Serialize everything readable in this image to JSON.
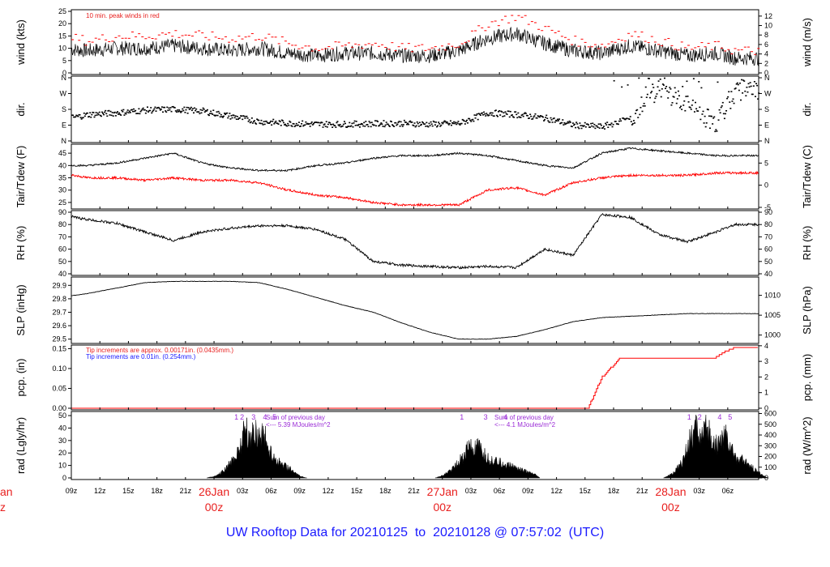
{
  "footer": {
    "prefix": "UW Rooftop Data for",
    "start": "20210125",
    "to": "to",
    "end": "20210128",
    "at": "@",
    "time": "07:57:02",
    "tz": "(UTC)"
  },
  "time_axis": {
    "tick_labels": [
      "09z",
      "12z",
      "15z",
      "18z",
      "21z",
      "03z",
      "06z",
      "09z",
      "12z",
      "15z",
      "18z",
      "21z",
      "03z",
      "06z",
      "09z",
      "12z",
      "15z",
      "18z",
      "21z",
      "03z",
      "06z"
    ],
    "day_labels": [
      {
        "date": "26Jan",
        "hour": "00z"
      },
      {
        "date": "27Jan",
        "hour": "00z"
      },
      {
        "date": "28Jan",
        "hour": "00z"
      }
    ],
    "left_clip_labels": [
      "an",
      "z"
    ]
  },
  "colors": {
    "series": "#000000",
    "dewpoint": "#ff0000",
    "annotation_red": "#e8201f",
    "annotation_blue": "#1a1aff",
    "annotation_purple": "#9a2bd6",
    "day_label": "#e8201f",
    "footer": "#1a1aff"
  },
  "chart_data": [
    {
      "id": "wind",
      "type": "line",
      "ylabel": "wind (kts)",
      "ylabel_right": "wind (m/s)",
      "ylim": [
        0,
        25
      ],
      "yticks": [
        "0",
        "5",
        "10",
        "15",
        "20",
        "25"
      ],
      "ylim_right": [
        0,
        13
      ],
      "yticks_right": [
        "0",
        "2",
        "4",
        "6",
        "8",
        "10",
        "12"
      ],
      "annotation": "10 min. peak winds in red",
      "x_hours": [
        0,
        3,
        6,
        9,
        12,
        15,
        18,
        21,
        24,
        27,
        30,
        33,
        36,
        39,
        42,
        45,
        48,
        51,
        54,
        57,
        60,
        63,
        66,
        69,
        71
      ],
      "series": [
        {
          "values": [
            10,
            9,
            10,
            10,
            11,
            10,
            9,
            10,
            8,
            7,
            8,
            8,
            7,
            7,
            9,
            14,
            16,
            12,
            9,
            8,
            11,
            9,
            7,
            8,
            6
          ]
        },
        {
          "values": [
            15,
            13,
            15,
            15,
            16,
            15,
            14,
            15,
            12,
            10,
            11,
            12,
            10,
            10,
            12,
            20,
            23,
            18,
            13,
            11,
            16,
            13,
            10,
            11,
            9
          ]
        }
      ]
    },
    {
      "id": "dir",
      "type": "scatter",
      "ylabel": "dir.",
      "ylabel_right": "dir.",
      "yticks": [
        "N",
        "E",
        "S",
        "W",
        "N"
      ],
      "x_hours": [
        0,
        3,
        6,
        9,
        12,
        15,
        18,
        21,
        24,
        27,
        30,
        33,
        36,
        39,
        42,
        45,
        48,
        51,
        54,
        57,
        60,
        63,
        66,
        69,
        71
      ],
      "values": [
        120,
        150,
        160,
        175,
        180,
        170,
        140,
        110,
        100,
        95,
        95,
        98,
        100,
        95,
        100,
        160,
        150,
        130,
        90,
        80,
        130,
        300,
        200,
        100,
        290
      ]
    },
    {
      "id": "temp",
      "type": "line",
      "ylabel": "Tair/Tdew (F)",
      "ylabel_right": "Tair/Tdew (C)",
      "ylim": [
        23,
        48
      ],
      "yticks": [
        "25",
        "30",
        "35",
        "40",
        "45"
      ],
      "ylim_right": [
        -5,
        8.9
      ],
      "yticks_right": [
        "-5",
        "0",
        "5"
      ],
      "x_hours": [
        0,
        3,
        6,
        9,
        12,
        15,
        18,
        21,
        24,
        27,
        30,
        33,
        36,
        39,
        42,
        45,
        48,
        51,
        54,
        57,
        60,
        63,
        66,
        69,
        71
      ],
      "series": [
        {
          "values": [
            40,
            40,
            41,
            43,
            45,
            41,
            39,
            38,
            38,
            40,
            41,
            43,
            44,
            44,
            45,
            44,
            42,
            40,
            39,
            45,
            47,
            46,
            45,
            44,
            44
          ]
        },
        {
          "values": [
            37,
            35,
            35,
            34,
            35,
            34,
            34,
            33,
            30,
            28,
            27,
            25,
            24,
            24,
            24,
            30,
            31,
            28,
            33,
            35,
            36,
            36,
            36,
            37,
            37
          ]
        }
      ]
    },
    {
      "id": "rh",
      "type": "line",
      "ylabel": "RH (%)",
      "ylabel_right": "RH (%)",
      "ylim": [
        40,
        90
      ],
      "yticks": [
        "40",
        "50",
        "60",
        "70",
        "80",
        "90"
      ],
      "x_hours": [
        0,
        3,
        6,
        9,
        12,
        15,
        18,
        21,
        24,
        27,
        30,
        33,
        36,
        39,
        42,
        45,
        48,
        51,
        54,
        57,
        60,
        63,
        66,
        69,
        71
      ],
      "values": [
        88,
        84,
        81,
        74,
        67,
        74,
        77,
        79,
        79,
        76,
        68,
        50,
        47,
        46,
        45,
        46,
        45,
        60,
        55,
        88,
        86,
        72,
        66,
        74,
        80
      ]
    },
    {
      "id": "slp",
      "type": "line",
      "ylabel": "SLP (inHg)",
      "ylabel_right": "SLP (hPa)",
      "ylim": [
        29.48,
        29.95
      ],
      "yticks": [
        "29.5",
        "29.6",
        "29.7",
        "29.8",
        "29.9"
      ],
      "ylim_right": [
        998.3,
        1014.2
      ],
      "yticks_right": [
        "1000",
        "1005",
        "1010"
      ],
      "x_hours": [
        0,
        3,
        6,
        9,
        12,
        15,
        18,
        21,
        24,
        27,
        30,
        33,
        36,
        39,
        42,
        45,
        48,
        51,
        54,
        57,
        60,
        63,
        66,
        69,
        71
      ],
      "values": [
        29.81,
        29.84,
        29.88,
        29.92,
        29.93,
        29.93,
        29.93,
        29.92,
        29.87,
        29.81,
        29.75,
        29.7,
        29.62,
        29.55,
        29.5,
        29.5,
        29.52,
        29.57,
        29.63,
        29.66,
        29.67,
        29.68,
        29.69,
        29.69,
        29.69
      ]
    },
    {
      "id": "pcp",
      "type": "line",
      "ylabel": "pcp. (in)",
      "ylabel_right": "pcp. (mm)",
      "ylim": [
        0,
        0.155
      ],
      "yticks": [
        "0.00",
        "0.05",
        "0.10",
        "0.15"
      ],
      "ylim_right": [
        0,
        3.94
      ],
      "yticks_right": [
        "0",
        "1",
        "2",
        "3",
        "4"
      ],
      "annotation_red": "Tip increments are approx. 0.00171in. (0.0435mm.)",
      "annotation_blue": "Tip increments are 0.01in. (0.254mm.)",
      "x_hours": [
        0,
        55.5,
        57,
        59,
        60,
        69,
        70,
        71
      ],
      "values": [
        0,
        0,
        0.08,
        0.13,
        0.13,
        0.13,
        0.145,
        0.155
      ]
    },
    {
      "id": "rad",
      "type": "area",
      "ylabel": "rad (Lgly/hr)",
      "ylabel_right": "rad (W/m^2)",
      "ylim": [
        0,
        52
      ],
      "yticks": [
        "0",
        "10",
        "20",
        "30",
        "40",
        "50"
      ],
      "ylim_right": [
        0,
        604
      ],
      "yticks_right": [
        "0",
        "100",
        "200",
        "300",
        "400",
        "500",
        "600"
      ],
      "hour_markers": [
        "1",
        "2",
        "3",
        "4",
        "5"
      ],
      "day_sums": [
        {
          "line1": "Sum of previous day",
          "line2": "<--- 5.39 MJoules/m^2"
        },
        {
          "line1": "Sum of previous day",
          "line2": "<--- 4.1 MJoules/m^2"
        }
      ],
      "days": [
        {
          "x_hours": [
            15.5,
            16.5,
            17.5,
            18.5,
            19,
            19.5,
            20,
            20.5,
            21,
            21.5,
            22,
            23,
            24,
            25,
            25.5,
            26
          ],
          "values": [
            0,
            2,
            8,
            20,
            30,
            48,
            35,
            45,
            38,
            42,
            25,
            15,
            10,
            3,
            1,
            0
          ]
        },
        {
          "x_hours": [
            39.5,
            40.5,
            41.5,
            42.5,
            43,
            43.5,
            44,
            45,
            46,
            47,
            48,
            49,
            50,
            50.5
          ],
          "values": [
            0,
            3,
            10,
            20,
            30,
            25,
            28,
            18,
            15,
            12,
            10,
            6,
            3,
            0
          ]
        },
        {
          "x_hours": [
            63.5,
            64.5,
            65.5,
            66,
            66.5,
            67,
            67.5,
            68,
            69,
            70,
            71,
            72,
            73,
            74,
            74.5
          ],
          "values": [
            0,
            4,
            15,
            30,
            38,
            48,
            35,
            45,
            30,
            40,
            20,
            15,
            8,
            2,
            0
          ]
        }
      ]
    }
  ]
}
